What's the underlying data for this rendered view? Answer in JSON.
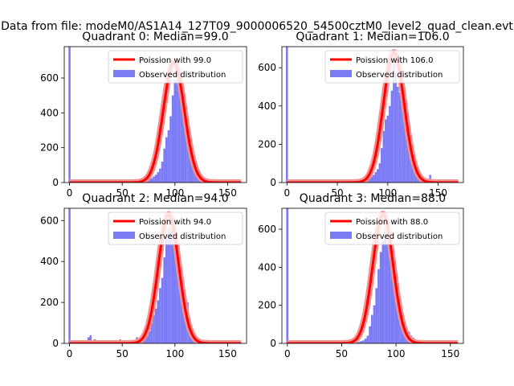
{
  "suptitle": "Data from file: modeM0/AS1A14_127T09_9000006520_54500cztM0_level2_quad_clean.evt",
  "legend": {
    "poisson_prefix": "Poission with",
    "observed": "Observed distribution"
  },
  "colors": {
    "hist": "#7b7bf6",
    "poisson": "#ff0000",
    "poisson_outer": "#f59090"
  },
  "chart_data": [
    {
      "type": "bar",
      "title": "Quadrant 0: Median=99.0",
      "median": 99.0,
      "xlim": [
        -5,
        168
      ],
      "ylim": [
        0,
        780
      ],
      "xticks": [
        0,
        50,
        100,
        150
      ],
      "yticks": [
        0,
        200,
        400,
        600
      ],
      "legend_label": "Poission with 99.0",
      "bins": [
        [
          0,
          780
        ],
        [
          6,
          1
        ],
        [
          15,
          2
        ],
        [
          25,
          1
        ],
        [
          35,
          2
        ],
        [
          45,
          1
        ],
        [
          55,
          2
        ],
        [
          64,
          2
        ],
        [
          66,
          3
        ],
        [
          68,
          5
        ],
        [
          70,
          8
        ],
        [
          72,
          12
        ],
        [
          74,
          16
        ],
        [
          76,
          20
        ],
        [
          78,
          26
        ],
        [
          80,
          35
        ],
        [
          82,
          45
        ],
        [
          84,
          60
        ],
        [
          86,
          80
        ],
        [
          88,
          120
        ],
        [
          90,
          195
        ],
        [
          92,
          260
        ],
        [
          94,
          300
        ],
        [
          96,
          380
        ],
        [
          98,
          500
        ],
        [
          100,
          590
        ],
        [
          102,
          630
        ],
        [
          104,
          560
        ],
        [
          106,
          470
        ],
        [
          108,
          450
        ],
        [
          110,
          300
        ],
        [
          112,
          275
        ],
        [
          114,
          220
        ],
        [
          116,
          160
        ],
        [
          118,
          80
        ],
        [
          120,
          60
        ],
        [
          122,
          40
        ],
        [
          124,
          30
        ],
        [
          126,
          22
        ],
        [
          128,
          10
        ],
        [
          130,
          5
        ],
        [
          135,
          2
        ],
        [
          140,
          2
        ],
        [
          150,
          1
        ],
        [
          160,
          1
        ]
      ],
      "poisson_peak": 690
    },
    {
      "type": "bar",
      "title": "Quadrant 1: Median=106.0",
      "median": 106.0,
      "xlim": [
        -5,
        175
      ],
      "ylim": [
        0,
        710
      ],
      "xticks": [
        0,
        50,
        100,
        150
      ],
      "yticks": [
        0,
        200,
        400,
        600
      ],
      "legend_label": "Poission with 106.0",
      "bins": [
        [
          0,
          710
        ],
        [
          8,
          1
        ],
        [
          18,
          2
        ],
        [
          30,
          1
        ],
        [
          45,
          2
        ],
        [
          60,
          1
        ],
        [
          70,
          2
        ],
        [
          74,
          3
        ],
        [
          76,
          6
        ],
        [
          78,
          10
        ],
        [
          80,
          15
        ],
        [
          82,
          20
        ],
        [
          84,
          30
        ],
        [
          86,
          40
        ],
        [
          88,
          55
        ],
        [
          90,
          70
        ],
        [
          92,
          100
        ],
        [
          94,
          180
        ],
        [
          96,
          270
        ],
        [
          98,
          330
        ],
        [
          100,
          350
        ],
        [
          102,
          400
        ],
        [
          104,
          480
        ],
        [
          106,
          620
        ],
        [
          108,
          580
        ],
        [
          110,
          500
        ],
        [
          112,
          470
        ],
        [
          114,
          420
        ],
        [
          116,
          360
        ],
        [
          118,
          270
        ],
        [
          120,
          200
        ],
        [
          122,
          170
        ],
        [
          124,
          140
        ],
        [
          126,
          100
        ],
        [
          128,
          75
        ],
        [
          130,
          60
        ],
        [
          132,
          40
        ],
        [
          134,
          30
        ],
        [
          136,
          20
        ],
        [
          138,
          12
        ],
        [
          142,
          40
        ],
        [
          146,
          10
        ],
        [
          150,
          5
        ],
        [
          160,
          2
        ]
      ],
      "poisson_peak": 680
    },
    {
      "type": "bar",
      "title": "Quadrant 2: Median=94.0",
      "median": 94.0,
      "xlim": [
        -5,
        168
      ],
      "ylim": [
        0,
        660
      ],
      "xticks": [
        0,
        50,
        100,
        150
      ],
      "yticks": [
        0,
        200,
        400,
        600
      ],
      "legend_label": "Poission with 94.0",
      "bins": [
        [
          0,
          660
        ],
        [
          6,
          2
        ],
        [
          10,
          5
        ],
        [
          14,
          15
        ],
        [
          18,
          30
        ],
        [
          20,
          40
        ],
        [
          24,
          20
        ],
        [
          28,
          8
        ],
        [
          32,
          6
        ],
        [
          36,
          6
        ],
        [
          40,
          10
        ],
        [
          44,
          12
        ],
        [
          48,
          20
        ],
        [
          52,
          15
        ],
        [
          56,
          10
        ],
        [
          60,
          15
        ],
        [
          64,
          30
        ],
        [
          66,
          20
        ],
        [
          68,
          25
        ],
        [
          70,
          45
        ],
        [
          72,
          50
        ],
        [
          74,
          40
        ],
        [
          76,
          60
        ],
        [
          78,
          100
        ],
        [
          80,
          140
        ],
        [
          82,
          170
        ],
        [
          84,
          210
        ],
        [
          86,
          270
        ],
        [
          88,
          320
        ],
        [
          90,
          420
        ],
        [
          92,
          510
        ],
        [
          94,
          560
        ],
        [
          96,
          590
        ],
        [
          98,
          530
        ],
        [
          100,
          500
        ],
        [
          102,
          450
        ],
        [
          104,
          400
        ],
        [
          106,
          330
        ],
        [
          108,
          240
        ],
        [
          110,
          230
        ],
        [
          112,
          200
        ],
        [
          114,
          110
        ],
        [
          116,
          60
        ],
        [
          118,
          45
        ],
        [
          120,
          30
        ],
        [
          122,
          20
        ],
        [
          126,
          10
        ],
        [
          130,
          6
        ],
        [
          135,
          4
        ],
        [
          140,
          3
        ],
        [
          150,
          2
        ],
        [
          160,
          1
        ]
      ],
      "poisson_peak": 630
    },
    {
      "type": "bar",
      "title": "Quadrant 3: Median=88.0",
      "median": 88.0,
      "xlim": [
        -5,
        162
      ],
      "ylim": [
        0,
        710
      ],
      "xticks": [
        0,
        50,
        100,
        150
      ],
      "yticks": [
        0,
        200,
        400,
        600
      ],
      "legend_label": "Poission with 88.0",
      "bins": [
        [
          0,
          710
        ],
        [
          7,
          1
        ],
        [
          20,
          1
        ],
        [
          35,
          2
        ],
        [
          50,
          2
        ],
        [
          60,
          3
        ],
        [
          62,
          4
        ],
        [
          64,
          5
        ],
        [
          66,
          8
        ],
        [
          68,
          12
        ],
        [
          70,
          16
        ],
        [
          72,
          25
        ],
        [
          74,
          40
        ],
        [
          76,
          90
        ],
        [
          78,
          150
        ],
        [
          80,
          200
        ],
        [
          82,
          290
        ],
        [
          84,
          390
        ],
        [
          86,
          480
        ],
        [
          88,
          540
        ],
        [
          90,
          600
        ],
        [
          92,
          580
        ],
        [
          94,
          520
        ],
        [
          96,
          450
        ],
        [
          98,
          380
        ],
        [
          100,
          300
        ],
        [
          102,
          210
        ],
        [
          104,
          150
        ],
        [
          106,
          140
        ],
        [
          108,
          90
        ],
        [
          110,
          70
        ],
        [
          112,
          60
        ],
        [
          114,
          40
        ],
        [
          116,
          30
        ],
        [
          118,
          18
        ],
        [
          120,
          12
        ],
        [
          124,
          8
        ],
        [
          128,
          5
        ],
        [
          135,
          3
        ],
        [
          145,
          2
        ],
        [
          150,
          1
        ]
      ],
      "poisson_peak": 680
    }
  ]
}
